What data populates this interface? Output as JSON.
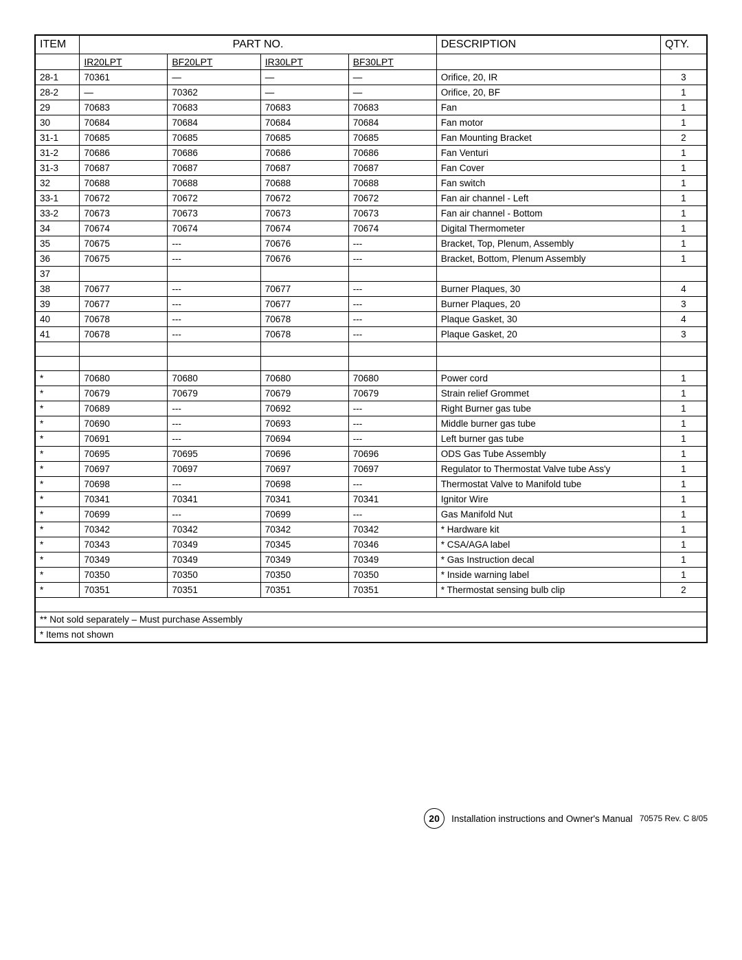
{
  "headers": {
    "item": "ITEM",
    "partno": "PART NO.",
    "description": "DESCRIPTION",
    "qty": "QTY."
  },
  "subheaders": {
    "p1": "IR20LPT",
    "p2": "BF20LPT",
    "p3": "IR30LPT",
    "p4": "BF30LPT"
  },
  "rows": [
    {
      "item": "28-1",
      "p1": "70361",
      "p2": "—",
      "p3": "—",
      "p4": "—",
      "desc": "Orifice, 20, IR",
      "qty": "3"
    },
    {
      "item": "28-2",
      "p1": "—",
      "p2": "70362",
      "p3": "—",
      "p4": "—",
      "desc": "Orifice, 20, BF",
      "qty": "1"
    },
    {
      "item": "29",
      "p1": "70683",
      "p2": "70683",
      "p3": "70683",
      "p4": "70683",
      "desc": "Fan",
      "qty": "1"
    },
    {
      "item": "30",
      "p1": "70684",
      "p2": "70684",
      "p3": "70684",
      "p4": "70684",
      "desc": "Fan motor",
      "qty": "1"
    },
    {
      "item": "31-1",
      "p1": "70685",
      "p2": "70685",
      "p3": "70685",
      "p4": "70685",
      "desc": "Fan Mounting Bracket",
      "qty": "2"
    },
    {
      "item": "31-2",
      "p1": "70686",
      "p2": "70686",
      "p3": "70686",
      "p4": "70686",
      "desc": "Fan Venturi",
      "qty": "1"
    },
    {
      "item": "31-3",
      "p1": "70687",
      "p2": "70687",
      "p3": "70687",
      "p4": "70687",
      "desc": "Fan Cover",
      "qty": "1"
    },
    {
      "item": "32",
      "p1": "70688",
      "p2": "70688",
      "p3": "70688",
      "p4": "70688",
      "desc": "Fan switch",
      "qty": "1"
    },
    {
      "item": "33-1",
      "p1": "70672",
      "p2": "70672",
      "p3": "70672",
      "p4": "70672",
      "desc": "Fan air channel - Left",
      "qty": "1"
    },
    {
      "item": "33-2",
      "p1": "70673",
      "p2": "70673",
      "p3": "70673",
      "p4": "70673",
      "desc": "Fan air channel - Bottom",
      "qty": "1"
    },
    {
      "item": "34",
      "p1": "70674",
      "p2": "70674",
      "p3": "70674",
      "p4": "70674",
      "desc": "Digital Thermometer",
      "qty": "1"
    },
    {
      "item": "35",
      "p1": "70675",
      "p2": "---",
      "p3": "70676",
      "p4": "---",
      "desc": "Bracket, Top, Plenum, Assembly",
      "qty": "1"
    },
    {
      "item": "36",
      "p1": "70675",
      "p2": "---",
      "p3": "70676",
      "p4": "---",
      "desc": "Bracket, Bottom, Plenum Assembly",
      "qty": "1"
    },
    {
      "item": "37",
      "p1": "",
      "p2": "",
      "p3": "",
      "p4": "",
      "desc": "",
      "qty": ""
    },
    {
      "item": "38",
      "p1": "70677",
      "p2": "---",
      "p3": "70677",
      "p4": "---",
      "desc": "Burner Plaques, 30",
      "qty": "4"
    },
    {
      "item": "39",
      "p1": "70677",
      "p2": "---",
      "p3": "70677",
      "p4": "---",
      "desc": "Burner Plaques, 20",
      "qty": "3"
    },
    {
      "item": "40",
      "p1": "70678",
      "p2": "---",
      "p3": "70678",
      "p4": "---",
      "desc": "Plaque Gasket, 30",
      "qty": "4"
    },
    {
      "item": "41",
      "p1": "70678",
      "p2": "---",
      "p3": "70678",
      "p4": "---",
      "desc": "Plaque Gasket, 20",
      "qty": "3"
    },
    {
      "item": "",
      "p1": "",
      "p2": "",
      "p3": "",
      "p4": "",
      "desc": "",
      "qty": ""
    },
    {
      "item": "",
      "p1": "",
      "p2": "",
      "p3": "",
      "p4": "",
      "desc": "",
      "qty": ""
    },
    {
      "item": "*",
      "p1": "70680",
      "p2": "70680",
      "p3": "70680",
      "p4": "70680",
      "desc": "Power cord",
      "qty": "1"
    },
    {
      "item": "*",
      "p1": "70679",
      "p2": "70679",
      "p3": "70679",
      "p4": "70679",
      "desc": "Strain relief Grommet",
      "qty": "1"
    },
    {
      "item": "*",
      "p1": "70689",
      "p2": "---",
      "p3": "70692",
      "p4": "---",
      "desc": "Right Burner gas tube",
      "qty": "1"
    },
    {
      "item": "*",
      "p1": "70690",
      "p2": "---",
      "p3": "70693",
      "p4": "---",
      "desc": "Middle burner gas tube",
      "qty": "1"
    },
    {
      "item": "*",
      "p1": "70691",
      "p2": "---",
      "p3": "70694",
      "p4": "---",
      "desc": "Left burner gas tube",
      "qty": "1"
    },
    {
      "item": "*",
      "p1": "70695",
      "p2": "70695",
      "p3": "70696",
      "p4": "70696",
      "desc": "ODS Gas Tube Assembly",
      "qty": "1"
    },
    {
      "item": "*",
      "p1": "70697",
      "p2": "70697",
      "p3": "70697",
      "p4": "70697",
      "desc": "Regulator to Thermostat Valve tube Ass'y",
      "qty": "1"
    },
    {
      "item": "*",
      "p1": "70698",
      "p2": "---",
      "p3": "70698",
      "p4": "---",
      "desc": "Thermostat Valve to Manifold tube",
      "qty": "1"
    },
    {
      "item": "*",
      "p1": "70341",
      "p2": "70341",
      "p3": "70341",
      "p4": "70341",
      "desc": "Ignitor Wire",
      "qty": "1"
    },
    {
      "item": "*",
      "p1": "70699",
      "p2": "---",
      "p3": "70699",
      "p4": "---",
      "desc": "Gas Manifold Nut",
      "qty": "1"
    },
    {
      "item": "*",
      "p1": "70342",
      "p2": "70342",
      "p3": "70342",
      "p4": "70342",
      "desc": "* Hardware kit",
      "qty": "1"
    },
    {
      "item": "*",
      "p1": "70343",
      "p2": "70349",
      "p3": "70345",
      "p4": "70346",
      "desc": "* CSA/AGA label",
      "qty": "1"
    },
    {
      "item": "*",
      "p1": "70349",
      "p2": "70349",
      "p3": "70349",
      "p4": "70349",
      "desc": "* Gas Instruction decal",
      "qty": "1"
    },
    {
      "item": "*",
      "p1": "70350",
      "p2": "70350",
      "p3": "70350",
      "p4": "70350",
      "desc": "* Inside warning label",
      "qty": "1"
    },
    {
      "item": "*",
      "p1": "70351",
      "p2": "70351",
      "p3": "70351",
      "p4": "70351",
      "desc": "* Thermostat sensing bulb clip",
      "qty": "2"
    }
  ],
  "notes": {
    "blank": "",
    "n1": "** Not sold separately – Must purchase Assembly",
    "n2": "* Items not shown"
  },
  "footer": {
    "page": "20",
    "text": "Installation instructions and Owner's Manual",
    "rev": "70575  Rev. C  8/05"
  }
}
